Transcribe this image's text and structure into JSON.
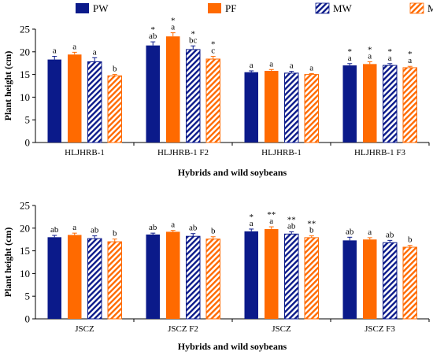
{
  "legend": [
    {
      "name": "PW",
      "color": "#0b1a8a",
      "pattern": "solid"
    },
    {
      "name": "PF",
      "color": "#ff6a00",
      "pattern": "solid"
    },
    {
      "name": "MW",
      "color": "#0b1a8a",
      "pattern": "hatch"
    },
    {
      "name": "MF",
      "color": "#ff6a00",
      "pattern": "hatch"
    }
  ],
  "chart_data": [
    {
      "type": "bar",
      "title": "",
      "xlabel": "Hybrids and wild soybeans",
      "ylabel": "Plant height (cm)",
      "ylim": [
        0,
        25
      ],
      "yticks": [
        "0",
        "5",
        "10",
        "15",
        "20",
        "25"
      ],
      "categories": [
        "HLJHRB-1",
        "HLJHRB-1 F2",
        "HLJHRB-1",
        "HLJHRB-1 F3"
      ],
      "series": [
        {
          "name": "PW",
          "values": [
            18.3,
            21.4,
            15.5,
            17.0
          ],
          "errors": [
            0.7,
            0.8,
            0.3,
            0.4
          ],
          "labels": [
            [
              "a"
            ],
            [
              "*",
              "ab"
            ],
            [
              "a"
            ],
            [
              "*",
              "a"
            ]
          ]
        },
        {
          "name": "PF",
          "values": [
            19.4,
            23.4,
            15.8,
            17.3
          ],
          "errors": [
            0.5,
            0.8,
            0.3,
            0.5
          ],
          "labels": [
            [
              "a"
            ],
            [
              "*",
              "a"
            ],
            [
              "a"
            ],
            [
              "*",
              "a"
            ]
          ]
        },
        {
          "name": "MW",
          "values": [
            17.8,
            20.5,
            15.3,
            17.0
          ],
          "errors": [
            0.9,
            0.8,
            0.4,
            0.4
          ],
          "labels": [
            [
              "a"
            ],
            [
              "*",
              "bc"
            ],
            [
              "a"
            ],
            [
              "*",
              "a"
            ]
          ]
        },
        {
          "name": "MF",
          "values": [
            14.7,
            18.4,
            15.0,
            16.5
          ],
          "errors": [
            0.3,
            0.6,
            0.2,
            0.3
          ],
          "labels": [
            [
              "b"
            ],
            [
              "*",
              "c"
            ],
            [
              "a"
            ],
            [
              "*",
              "a"
            ]
          ]
        }
      ]
    },
    {
      "type": "bar",
      "title": "",
      "xlabel": "Hybrids and wild soybeans",
      "ylabel": "Plant height (cm)",
      "ylim": [
        0,
        25
      ],
      "yticks": [
        "0",
        "5",
        "10",
        "15",
        "20",
        "25"
      ],
      "categories": [
        "JSCZ",
        "JSCZ F2",
        "JSCZ",
        "JSCZ F3"
      ],
      "series": [
        {
          "name": "PW",
          "values": [
            18.0,
            18.6,
            19.3,
            17.3
          ],
          "errors": [
            0.4,
            0.3,
            0.5,
            0.7
          ],
          "labels": [
            [
              "ab"
            ],
            [
              "ab"
            ],
            [
              "*",
              "a"
            ],
            [
              "ab"
            ]
          ]
        },
        {
          "name": "PF",
          "values": [
            18.5,
            19.2,
            19.8,
            17.5
          ],
          "errors": [
            0.4,
            0.3,
            0.5,
            0.4
          ],
          "labels": [
            [
              "a"
            ],
            [
              "a"
            ],
            [
              "**",
              "a"
            ],
            [
              "a"
            ]
          ]
        },
        {
          "name": "MW",
          "values": [
            17.7,
            18.2,
            18.7,
            16.8
          ],
          "errors": [
            0.6,
            0.6,
            0.5,
            0.5
          ],
          "labels": [
            [
              "ab"
            ],
            [
              "ab"
            ],
            [
              "**",
              "ab"
            ],
            [
              "ab"
            ]
          ]
        },
        {
          "name": "MF",
          "values": [
            17.0,
            17.6,
            17.9,
            15.8
          ],
          "errors": [
            0.6,
            0.5,
            0.4,
            0.4
          ],
          "labels": [
            [
              "b"
            ],
            [
              "b"
            ],
            [
              "**",
              "b"
            ],
            [
              "b"
            ]
          ]
        }
      ]
    }
  ]
}
